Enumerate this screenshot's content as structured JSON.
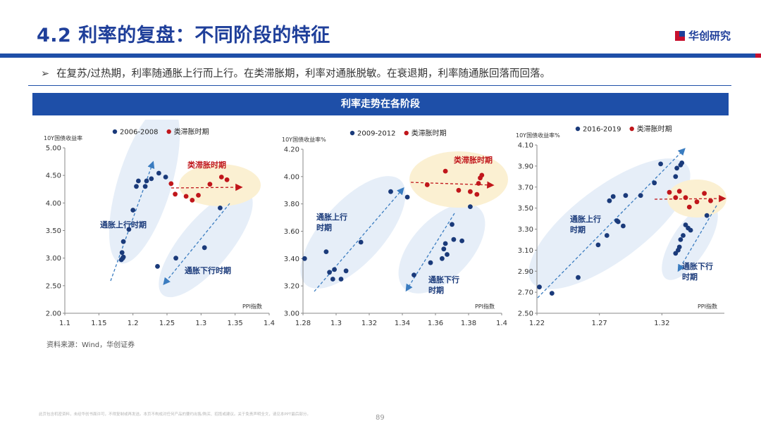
{
  "header": {
    "title": "4.2 利率的复盘：不同阶段的特征",
    "logo_text": "华创研究"
  },
  "bullet": {
    "marker": "➢",
    "text": "在复苏/过热期，利率随通胀上行而上行。在类滞胀期，利率对通胀脱敏。在衰退期，利率随通胀回落而回落。"
  },
  "banner": {
    "title": "利率走势在各阶段"
  },
  "source": "资料来源：Wind，华创证券",
  "footer": {
    "disclaimer": "此页包含机密资料，未经华创书面许可，不得复制或再发送。本页不构成对任何产品的要约出售/购买、招揽或建议。关于免责声明全文，请见本PPT最后部分。",
    "page_number": "89"
  },
  "colors": {
    "navy": "#1f3f9a",
    "blue_band": "#1e4fa8",
    "red": "#c8102e",
    "dot_blue": "#1a3a7a",
    "dot_red": "#c0161b"
  },
  "chart_data": [
    {
      "type": "scatter",
      "ylabel": "10Y国债收益率",
      "xlabel": "PPI指数",
      "xlim": [
        1.1,
        1.4
      ],
      "ylim": [
        2.0,
        5.0
      ],
      "xticks": [
        "1.1",
        "1.15",
        "1.2",
        "1.25",
        "1.3",
        "1.35",
        "1.4"
      ],
      "yticks": [
        "2.00",
        "2.50",
        "3.00",
        "3.50",
        "4.00",
        "4.50",
        "5.00"
      ],
      "series": [
        {
          "name": "2006-2008",
          "color": "#1a3a7a",
          "points": [
            [
              1.183,
              2.97
            ],
            [
              1.185,
              3.0
            ],
            [
              1.186,
              3.02
            ],
            [
              1.184,
              3.1
            ],
            [
              1.186,
              3.3
            ],
            [
              1.194,
              3.52
            ],
            [
              1.2,
              3.87
            ],
            [
              1.205,
              4.3
            ],
            [
              1.208,
              4.4
            ],
            [
              1.218,
              4.3
            ],
            [
              1.22,
              4.4
            ],
            [
              1.227,
              4.44
            ],
            [
              1.238,
              4.54
            ],
            [
              1.248,
              4.47
            ],
            [
              1.236,
              2.85
            ],
            [
              1.263,
              3.0
            ],
            [
              1.305,
              3.19
            ],
            [
              1.328,
              3.91
            ]
          ]
        },
        {
          "name": "类滞胀时期",
          "color": "#c0161b",
          "points": [
            [
              1.256,
              4.35
            ],
            [
              1.262,
              4.16
            ],
            [
              1.278,
              4.12
            ],
            [
              1.287,
              4.05
            ],
            [
              1.296,
              4.14
            ],
            [
              1.313,
              4.34
            ],
            [
              1.33,
              4.47
            ],
            [
              1.338,
              4.42
            ]
          ]
        }
      ],
      "annotations": [
        "类滞胀时期",
        "通胀上行时期",
        "通胀下行时期"
      ]
    },
    {
      "type": "scatter",
      "ylabel": "10Y国债收益率%",
      "xlabel": "PPI指数",
      "xlim": [
        1.28,
        1.4
      ],
      "ylim": [
        3.0,
        4.2
      ],
      "xticks": [
        "1.28",
        "1.3",
        "1.32",
        "1.34",
        "1.36",
        "1.38",
        "1.4"
      ],
      "yticks": [
        "3.00",
        "3.20",
        "3.40",
        "3.60",
        "3.80",
        "4.00",
        "4.20"
      ],
      "series": [
        {
          "name": "2009-2012",
          "color": "#1a3a7a",
          "points": [
            [
              1.281,
              3.4
            ],
            [
              1.294,
              3.45
            ],
            [
              1.296,
              3.3
            ],
            [
              1.298,
              3.25
            ],
            [
              1.299,
              3.32
            ],
            [
              1.303,
              3.25
            ],
            [
              1.306,
              3.31
            ],
            [
              1.315,
              3.52
            ],
            [
              1.333,
              3.89
            ],
            [
              1.343,
              3.85
            ],
            [
              1.347,
              3.28
            ],
            [
              1.357,
              3.37
            ],
            [
              1.364,
              3.4
            ],
            [
              1.365,
              3.47
            ],
            [
              1.366,
              3.51
            ],
            [
              1.367,
              3.43
            ],
            [
              1.37,
              3.65
            ],
            [
              1.371,
              3.54
            ],
            [
              1.376,
              3.53
            ],
            [
              1.381,
              3.78
            ]
          ]
        },
        {
          "name": "类滞胀时期",
          "color": "#c0161b",
          "points": [
            [
              1.355,
              3.94
            ],
            [
              1.366,
              4.04
            ],
            [
              1.374,
              3.9
            ],
            [
              1.381,
              3.89
            ],
            [
              1.385,
              3.87
            ],
            [
              1.386,
              3.95
            ],
            [
              1.387,
              3.99
            ],
            [
              1.388,
              4.01
            ]
          ]
        }
      ],
      "annotations": [
        "类滞胀时期",
        "通胀上行时期",
        "通胀下行时期"
      ]
    },
    {
      "type": "scatter",
      "ylabel": "10Y国债收益率%",
      "xlabel": "PPI指数",
      "xlim": [
        1.22,
        1.37
      ],
      "ylim": [
        2.5,
        4.1
      ],
      "xticks": [
        "1.22",
        "1.27",
        "1.32"
      ],
      "yticks": [
        "2.50",
        "2.70",
        "2.90",
        "3.10",
        "3.30",
        "3.50",
        "3.70",
        "3.90",
        "4.10"
      ],
      "series": [
        {
          "name": "2016-2019",
          "color": "#1a3a7a",
          "points": [
            [
              1.222,
              2.75
            ],
            [
              1.232,
              2.69
            ],
            [
              1.253,
              2.84
            ],
            [
              1.269,
              3.15
            ],
            [
              1.276,
              3.24
            ],
            [
              1.278,
              3.57
            ],
            [
              1.281,
              3.61
            ],
            [
              1.284,
              3.38
            ],
            [
              1.285,
              3.37
            ],
            [
              1.289,
              3.33
            ],
            [
              1.291,
              3.62
            ],
            [
              1.303,
              3.62
            ],
            [
              1.314,
              3.74
            ],
            [
              1.319,
              3.92
            ],
            [
              1.331,
              3.8
            ],
            [
              1.332,
              3.88
            ],
            [
              1.335,
              3.91
            ],
            [
              1.336,
              3.93
            ],
            [
              1.331,
              3.07
            ],
            [
              1.333,
              3.1
            ],
            [
              1.334,
              3.13
            ],
            [
              1.335,
              3.2
            ],
            [
              1.337,
              3.24
            ],
            [
              1.339,
              3.34
            ],
            [
              1.341,
              3.31
            ],
            [
              1.343,
              3.29
            ],
            [
              1.356,
              3.43
            ]
          ]
        },
        {
          "name": "类滞胀时期",
          "color": "#c0161b",
          "points": [
            [
              1.326,
              3.65
            ],
            [
              1.331,
              3.6
            ],
            [
              1.334,
              3.66
            ],
            [
              1.339,
              3.6
            ],
            [
              1.342,
              3.51
            ],
            [
              1.348,
              3.56
            ],
            [
              1.354,
              3.64
            ],
            [
              1.359,
              3.57
            ]
          ]
        }
      ],
      "annotations": [
        "通胀上行时期",
        "通胀下行时期"
      ]
    }
  ]
}
